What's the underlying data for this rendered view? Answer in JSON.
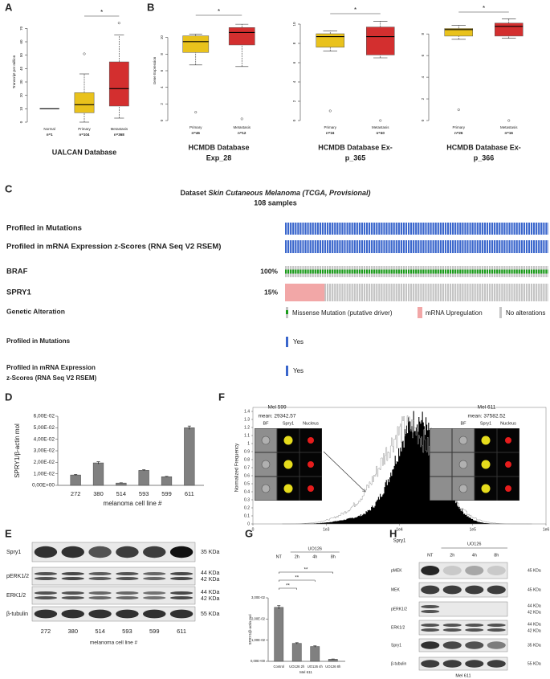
{
  "panels": {
    "a": {
      "letter": "A",
      "type": "box",
      "y_label": "Transcript per million",
      "ylim": [
        0,
        75
      ],
      "yticks": [
        0,
        10,
        20,
        30,
        40,
        50,
        60,
        70
      ],
      "categories": [
        "Normal",
        "Primary",
        "Metastasis"
      ],
      "n_labels": [
        "n=1",
        "n=104",
        "n=368"
      ],
      "significance": "*",
      "boxes": [
        {
          "median": 10
        },
        {
          "color": "#e9c21c",
          "low": 0,
          "q1": 7,
          "median": 13,
          "q3": 22,
          "high": 36,
          "outliers": [
            51
          ]
        },
        {
          "color": "#d32f2f",
          "low": 3,
          "q1": 12,
          "median": 25,
          "q3": 45,
          "high": 65,
          "outliers": [
            74
          ]
        }
      ],
      "caption": [
        "UALCAN Database"
      ]
    },
    "b1": {
      "letter": "B",
      "type": "box",
      "y_label": "Gene Expression",
      "ylim": [
        0,
        12
      ],
      "yticks": [
        0,
        2,
        4,
        6,
        8,
        10
      ],
      "categories": [
        "Primary",
        "Metastasis"
      ],
      "n_labels": [
        "n=46",
        "n=12"
      ],
      "significance": "*",
      "boxes": [
        {
          "color": "#e9c21c",
          "low": 6.7,
          "q1": 8.2,
          "median": 9.5,
          "q3": 10.2,
          "high": 10.4,
          "outliers": [
            1
          ]
        },
        {
          "color": "#d32f2f",
          "low": 6.5,
          "q1": 9.1,
          "median": 10.6,
          "q3": 11.2,
          "high": 11.6,
          "outliers": [
            0.2
          ]
        }
      ],
      "caption": [
        "HCMDB Database",
        "Exp_28"
      ]
    },
    "b2": {
      "type": "box",
      "ylim": [
        0,
        10.5
      ],
      "yticks": [
        0,
        2,
        4,
        6,
        8,
        10
      ],
      "categories": [
        "Primary",
        "Metastasis"
      ],
      "n_labels": [
        "n=16",
        "n=40"
      ],
      "significance": "*",
      "boxes": [
        {
          "color": "#e9c21c",
          "low": 7.2,
          "q1": 7.6,
          "median": 8.7,
          "q3": 9.0,
          "high": 9.3,
          "outliers": [
            1
          ]
        },
        {
          "color": "#d32f2f",
          "low": 6.5,
          "q1": 6.8,
          "median": 8.7,
          "q3": 9.7,
          "high": 10.3,
          "outliers": [
            0
          ]
        }
      ],
      "caption": [
        "HCMDB Database Ex-",
        "p_365"
      ]
    },
    "b3": {
      "type": "box",
      "ylim": [
        0,
        9.5
      ],
      "yticks": [
        0,
        2,
        4,
        6,
        8
      ],
      "categories": [
        "Primary",
        "Metastasis"
      ],
      "n_labels": [
        "n=26",
        "n=16"
      ],
      "significance": "*",
      "boxes": [
        {
          "color": "#e9c21c",
          "low": 7.5,
          "q1": 7.8,
          "median": 8.4,
          "q3": 8.5,
          "high": 8.8,
          "outliers": [
            1
          ]
        },
        {
          "color": "#d32f2f",
          "low": 7.6,
          "q1": 7.8,
          "median": 8.7,
          "q3": 9.0,
          "high": 9.4,
          "outliers": [
            0
          ]
        }
      ],
      "caption": [
        "HCMDB Database Ex-",
        "p_366"
      ]
    },
    "c": {
      "letter": "C",
      "title_prefix": "Dataset ",
      "title_italic": "Skin Cutaneous Melanoma (TCGA, Provisional)",
      "subtitle": "108 samples",
      "tracks": [
        {
          "name": "Profiled in Mutations"
        },
        {
          "name": "Profiled in mRNA Expression z-Scores (RNA Seq V2 RSEM)"
        },
        {
          "name": "BRAF",
          "value": 100,
          "value_label": "100%"
        },
        {
          "name": "SPRY1",
          "value": 15,
          "value_label": "15%"
        }
      ],
      "legend_title": "Genetic Alteration",
      "legend": [
        "Missense Mutation (putative driver)",
        "mRNA Upregulation",
        "No alterations"
      ],
      "profiled": [
        {
          "lines": [
            "Profiled in Mutations"
          ],
          "value": "Yes"
        },
        {
          "lines": [
            "Profiled in mRNA Expression",
            "z-Scores (RNA Seq V2 RSEM)"
          ],
          "value": "Yes"
        }
      ]
    },
    "d": {
      "letter": "D",
      "type": "bar",
      "y_label": "SPRY1/β-actin mol",
      "x_label": "melanoma cell line #",
      "categories": [
        "272",
        "380",
        "514",
        "593",
        "599",
        "611"
      ],
      "values": [
        0.009,
        0.0195,
        0.002,
        0.013,
        0.0075,
        0.05
      ],
      "errors": [
        0.0004,
        0.001,
        0.0002,
        0.0005,
        0.0003,
        0.0015
      ],
      "color": "#808080",
      "ylim": [
        0,
        0.06
      ],
      "yticks": [
        {
          "value": 0,
          "label": "0,00E+00"
        },
        {
          "value": 0.01,
          "label": "1,00E-02"
        },
        {
          "value": 0.02,
          "label": "2,00E-02"
        },
        {
          "value": 0.03,
          "label": "3,00E-02"
        },
        {
          "value": 0.04,
          "label": "4,00E-02"
        },
        {
          "value": 0.05,
          "label": "5,00E-02"
        },
        {
          "value": 0.06,
          "label": "6,00E-02"
        }
      ]
    },
    "e": {
      "letter": "E",
      "lanes": [
        "272",
        "380",
        "514",
        "593",
        "599",
        "611"
      ],
      "x_label": "melanoma cell line #",
      "rows": [
        {
          "name": "Spry1",
          "sizes": [
            "35 KDa"
          ]
        },
        {
          "name": "pERK1/2",
          "sizes": [
            "44 KDa",
            "42 KDa"
          ]
        },
        {
          "name": "ERK1/2",
          "sizes": [
            "44 KDa",
            "42 KDa"
          ]
        },
        {
          "name": "β-tubulin",
          "sizes": [
            "55 KDa"
          ]
        }
      ]
    },
    "f": {
      "letter": "F",
      "y_label": "Normalized Frequency",
      "x_label": "Spry1",
      "ylim": [
        0,
        1.4
      ],
      "yticks": [
        0,
        0.1,
        0.2,
        0.3,
        0.4,
        0.5,
        0.6,
        0.7,
        0.8,
        0.9,
        1,
        1.1,
        1.2,
        1.3,
        1.4
      ],
      "x_scale": "logicle",
      "xlim": [
        0,
        1000000
      ],
      "xticks": [
        {
          "value": 0,
          "label": "0"
        },
        {
          "value": 1000,
          "label": "1e3"
        },
        {
          "value": 10000,
          "label": "1e4"
        },
        {
          "value": 100000,
          "label": "1e5"
        },
        {
          "value": 1000000,
          "label": "1e6"
        }
      ],
      "samples": [
        {
          "name": "Mel 599",
          "mean": "mean: 29342.57"
        },
        {
          "name": "Mel 611",
          "mean": "mean: 37582.52"
        }
      ],
      "inset_headers": [
        "BF",
        "Spry1",
        "Nucleus"
      ]
    },
    "g": {
      "letter": "G",
      "type": "bar",
      "treatment": "UO126",
      "conditions": [
        "NT",
        "2h",
        "4h",
        "8h"
      ],
      "significance": [
        "**",
        "**",
        "**"
      ],
      "y_label": "SPRY1/β-actin mol",
      "x_label": "Mel 611",
      "categories": [
        "Control",
        "UO126 2h",
        "UO126 4h",
        "UO126 8h"
      ],
      "values": [
        0.0255,
        0.0085,
        0.007,
        0.001
      ],
      "errors": [
        0.0008,
        0.0003,
        0.0003,
        0.0001
      ],
      "color": "#808080",
      "ylim": [
        0,
        0.03
      ],
      "yticks": [
        {
          "value": 0,
          "label": "0,00E+00"
        },
        {
          "value": 0.01,
          "label": "1,00E-02"
        },
        {
          "value": 0.02,
          "label": "2,00E-02"
        },
        {
          "value": 0.03,
          "label": "3,00E-02"
        }
      ]
    },
    "h": {
      "letter": "H",
      "treatment": "UO126",
      "lanes": [
        "NT",
        "2h",
        "4h",
        "8h"
      ],
      "x_label": "Mel 611",
      "rows": [
        {
          "name": "pMEK",
          "sizes": [
            "45 KDa"
          ]
        },
        {
          "name": "MEK",
          "sizes": [
            "45 KDa"
          ]
        },
        {
          "name": "pERK1/2",
          "sizes": [
            "44 KDa",
            "42 KDa"
          ]
        },
        {
          "name": "ERK1/2",
          "sizes": [
            "44 KDa",
            "42 KDa"
          ]
        },
        {
          "name": "Spry1",
          "sizes": [
            "35 KDa"
          ]
        },
        {
          "name": "β-tubulin",
          "sizes": [
            "55 KDa"
          ]
        }
      ]
    }
  }
}
